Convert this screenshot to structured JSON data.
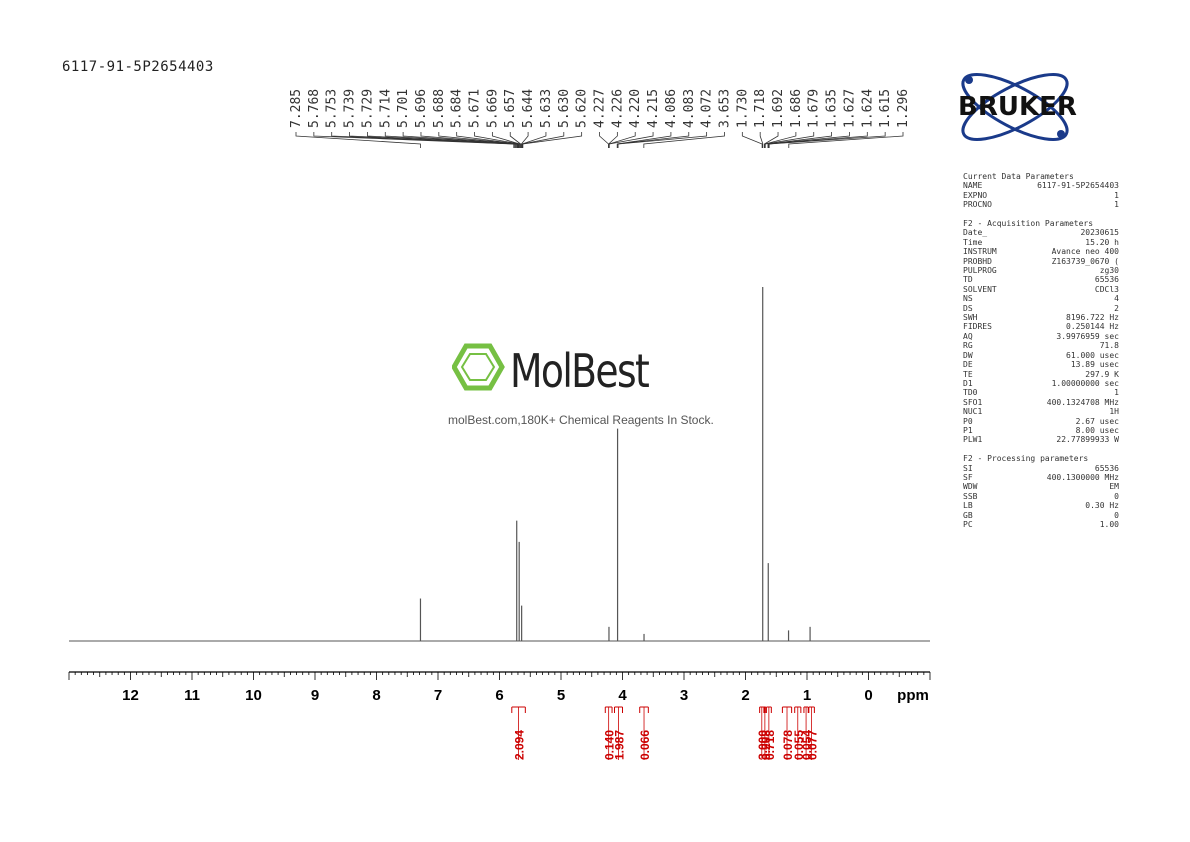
{
  "sample_name": "6117-91-5P2654403",
  "branding": {
    "bruker_text": "BRUKER",
    "molbest_name": "MolBest",
    "molbest_tagline": "molBest.com,180K+ Chemical Reagents In Stock."
  },
  "colors": {
    "trace": "#555555",
    "axis": "#000000",
    "integral": "#cc0000",
    "bruker_blue": "#1a3a8a",
    "molbest_green": "#76c043"
  },
  "parameters": {
    "current": {
      "title": "Current Data Parameters",
      "rows": [
        {
          "k": "NAME",
          "v": "6117-91-5P2654403"
        },
        {
          "k": "EXPNO",
          "v": "1"
        },
        {
          "k": "PROCNO",
          "v": "1"
        }
      ]
    },
    "acquisition": {
      "title": "F2 - Acquisition Parameters",
      "rows": [
        {
          "k": "Date_",
          "v": "20230615"
        },
        {
          "k": "Time",
          "v": "15.20 h"
        },
        {
          "k": "INSTRUM",
          "v": "Avance neo 400"
        },
        {
          "k": "PROBHD",
          "v": "Z163739_0670 ("
        },
        {
          "k": "PULPROG",
          "v": "zg30"
        },
        {
          "k": "TD",
          "v": "65536"
        },
        {
          "k": "SOLVENT",
          "v": "CDCl3"
        },
        {
          "k": "NS",
          "v": "4"
        },
        {
          "k": "DS",
          "v": "2"
        },
        {
          "k": "SWH",
          "v": "8196.722 Hz"
        },
        {
          "k": "FIDRES",
          "v": "0.250144 Hz"
        },
        {
          "k": "AQ",
          "v": "3.9976959 sec"
        },
        {
          "k": "RG",
          "v": "71.8"
        },
        {
          "k": "DW",
          "v": "61.000 usec"
        },
        {
          "k": "DE",
          "v": "13.89 usec"
        },
        {
          "k": "TE",
          "v": "297.9 K"
        },
        {
          "k": "D1",
          "v": "1.00000000 sec"
        },
        {
          "k": "TD0",
          "v": "1"
        },
        {
          "k": "SFO1",
          "v": "400.1324708 MHz"
        },
        {
          "k": "NUC1",
          "v": "1H"
        },
        {
          "k": "P0",
          "v": "2.67 usec"
        },
        {
          "k": "P1",
          "v": "8.00 usec"
        },
        {
          "k": "PLW1",
          "v": "22.77899933 W"
        }
      ]
    },
    "processing": {
      "title": "F2 - Processing parameters",
      "rows": [
        {
          "k": "SI",
          "v": "65536"
        },
        {
          "k": "SF",
          "v": "400.1300000 MHz"
        },
        {
          "k": "WDW",
          "v": "EM"
        },
        {
          "k": "SSB",
          "v": "0"
        },
        {
          "k": "LB",
          "v": "0.30 Hz"
        },
        {
          "k": "GB",
          "v": "0"
        },
        {
          "k": "PC",
          "v": "1.00"
        }
      ]
    }
  },
  "chart_data": {
    "type": "line",
    "xlabel": "ppm",
    "xlim": [
      13.0,
      -1.0
    ],
    "x_reversed": true,
    "major_ticks": [
      12,
      11,
      10,
      9,
      8,
      7,
      6,
      5,
      4,
      3,
      2,
      1,
      0
    ],
    "peak_labels": [
      "7.285",
      "5.768",
      "5.753",
      "5.739",
      "5.729",
      "5.714",
      "5.701",
      "5.696",
      "5.688",
      "5.684",
      "5.671",
      "5.669",
      "5.657",
      "5.644",
      "5.633",
      "5.630",
      "5.620",
      "4.227",
      "4.226",
      "4.220",
      "4.215",
      "4.086",
      "4.083",
      "4.072",
      "3.653",
      "1.730",
      "1.718",
      "1.692",
      "1.686",
      "1.679",
      "1.635",
      "1.627",
      "1.624",
      "1.615",
      "1.296"
    ],
    "peaks": [
      {
        "ppm": 7.285,
        "intensity": 0.12
      },
      {
        "ppm": 5.72,
        "intensity": 0.34
      },
      {
        "ppm": 5.68,
        "intensity": 0.28
      },
      {
        "ppm": 5.64,
        "intensity": 0.1
      },
      {
        "ppm": 4.22,
        "intensity": 0.04
      },
      {
        "ppm": 4.08,
        "intensity": 0.6
      },
      {
        "ppm": 3.65,
        "intensity": 0.02
      },
      {
        "ppm": 1.72,
        "intensity": 1.0
      },
      {
        "ppm": 1.63,
        "intensity": 0.22
      },
      {
        "ppm": 1.3,
        "intensity": 0.03
      },
      {
        "ppm": 0.95,
        "intensity": 0.04
      }
    ],
    "integrals": [
      {
        "value": "2.094",
        "from": 5.8,
        "to": 5.58
      },
      {
        "value": "0.140",
        "from": 4.28,
        "to": 4.17
      },
      {
        "value": "1.987",
        "from": 4.13,
        "to": 4.0
      },
      {
        "value": "0.066",
        "from": 3.72,
        "to": 3.58
      },
      {
        "value": "3.000",
        "from": 1.77,
        "to": 1.7
      },
      {
        "value": "0.208",
        "from": 1.7,
        "to": 1.67
      },
      {
        "value": "0.718",
        "from": 1.66,
        "to": 1.58
      },
      {
        "value": "0.078",
        "from": 1.4,
        "to": 1.25
      },
      {
        "value": "0.055",
        "from": 1.2,
        "to": 1.1
      },
      {
        "value": "0.054",
        "from": 1.05,
        "to": 0.98
      },
      {
        "value": "0.077",
        "from": 0.97,
        "to": 0.88
      }
    ]
  }
}
